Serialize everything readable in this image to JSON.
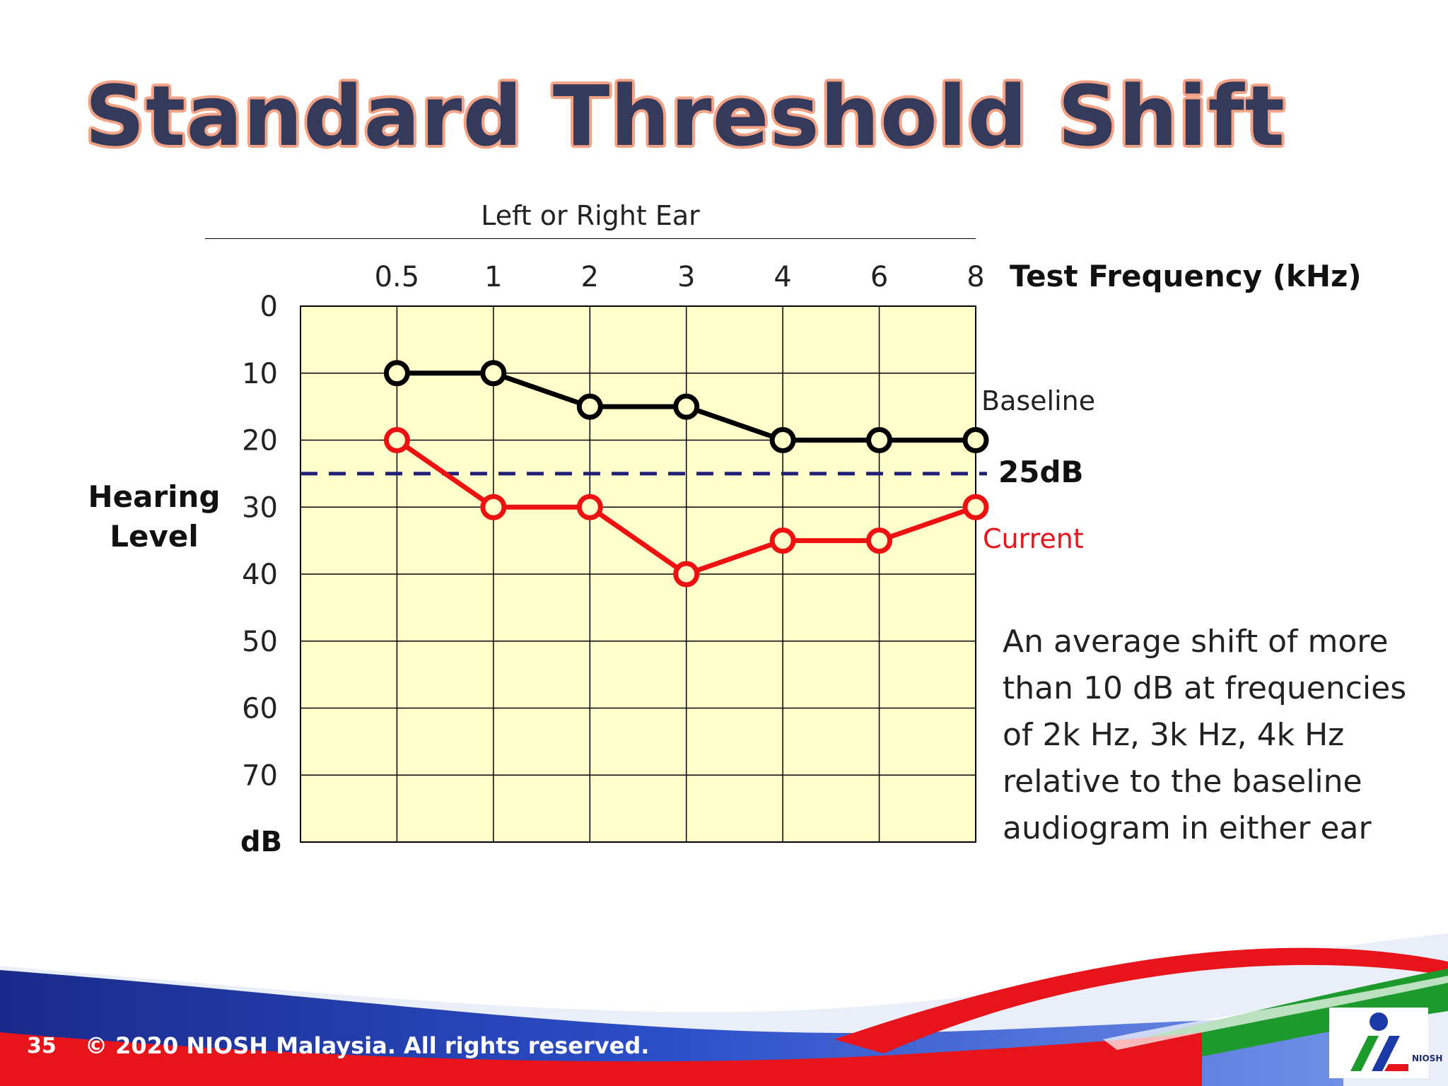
{
  "slide": {
    "title": "Standard Threshold Shift",
    "page_number": "35",
    "copyright": "© 2020 NIOSH Malaysia. All rights reserved.",
    "logo_text": "NIOSH",
    "note": "An average shift of more than 10 dB at frequencies of 2k Hz, 3k Hz, 4k Hz relative to the baseline audiogram in either ear"
  },
  "colors": {
    "plot_background": "#ffffcc",
    "baseline": "#000000",
    "current": "#ee1111",
    "reference_line": "#1f1f7a",
    "title_text": "#35395a",
    "title_outline": "#f2a285"
  },
  "chart_data": {
    "type": "line",
    "title": "Left or Right Ear",
    "xlabel": "Test Frequency (kHz)",
    "ylabel_lines": [
      "Hearing",
      "Level"
    ],
    "yunit": "dB",
    "categories": [
      "0.5",
      "1",
      "2",
      "3",
      "4",
      "6",
      "8"
    ],
    "yticks": [
      "0",
      "10",
      "20",
      "30",
      "40",
      "50",
      "60",
      "70"
    ],
    "ylim": [
      0,
      80
    ],
    "y_inverted": true,
    "grid": true,
    "series": [
      {
        "name": "Baseline",
        "values": [
          10,
          10,
          15,
          15,
          20,
          20,
          20
        ],
        "color": "#000000",
        "marker": "open-circle"
      },
      {
        "name": "Current",
        "values": [
          20,
          30,
          30,
          40,
          35,
          35,
          30
        ],
        "color": "#ee1111",
        "marker": "open-circle"
      }
    ],
    "reference_line": {
      "value": 25,
      "label": "25dB",
      "style": "dashed",
      "color": "#1f1f7a"
    }
  }
}
